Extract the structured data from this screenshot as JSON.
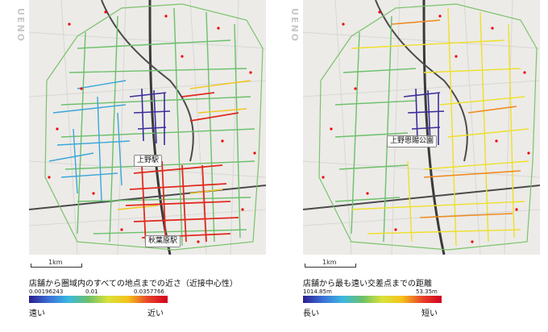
{
  "area_label": "UENO",
  "left_panel": {
    "places": [
      "上野駅",
      "秋葉原駅"
    ],
    "scale_label": "1km",
    "legend_title": "店舗から圏域内のすべての地点までの近さ（近接中心性）",
    "ticks": [
      "0.00196243",
      "0.01",
      "0.0357766"
    ],
    "low_label": "遠い",
    "high_label": "近い",
    "gradient_colors": [
      "#2b1f8f",
      "#3b6fd8",
      "#3bb8e0",
      "#6cc06a",
      "#d9e23a",
      "#f5c21b",
      "#e8452a",
      "#d4001f"
    ]
  },
  "right_panel": {
    "places": [
      "上野恩賜公園"
    ],
    "scale_label": "1km",
    "legend_title": "店舗から最も遠い交差点までの距離",
    "ticks": [
      "1014.85m",
      "53.35m"
    ],
    "low_label": "長い",
    "high_label": "短い",
    "gradient_colors": [
      "#2b1f8f",
      "#3b6fd8",
      "#3bb8e0",
      "#6cc06a",
      "#d9e23a",
      "#f5c21b",
      "#e8452a",
      "#d4001f"
    ]
  }
}
